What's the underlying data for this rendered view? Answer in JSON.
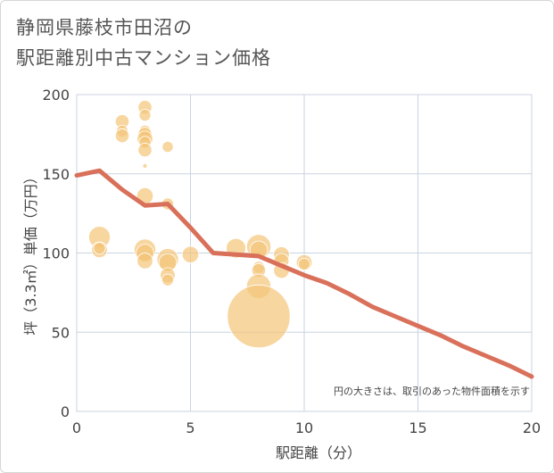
{
  "chart_data": {
    "type": "scatter",
    "title_lines": [
      "静岡県藤枝市田沼の",
      "駅距離別中古マンション価格"
    ],
    "xlabel": "駅距離（分）",
    "ylabel": "坪（3.3㎡）単価（万円）",
    "xlim": [
      0,
      20
    ],
    "ylim": [
      0,
      200
    ],
    "xticks": [
      0,
      5,
      10,
      15,
      20
    ],
    "yticks": [
      0,
      50,
      100,
      150,
      200
    ],
    "grid": true,
    "note": "円の大きさは、取引のあった物件面積を示す",
    "colors": {
      "bubble": "#f3c477",
      "line": "#d9705a",
      "grid": "#c9d3e0"
    },
    "bubbles": [
      {
        "x": 1,
        "y": 110,
        "size": 0.55
      },
      {
        "x": 1,
        "y": 102,
        "size": 0.4
      },
      {
        "x": 1,
        "y": 103,
        "size": 0.3
      },
      {
        "x": 2,
        "y": 183,
        "size": 0.35
      },
      {
        "x": 2,
        "y": 177,
        "size": 0.3
      },
      {
        "x": 2,
        "y": 174,
        "size": 0.35
      },
      {
        "x": 3,
        "y": 192,
        "size": 0.35
      },
      {
        "x": 3,
        "y": 187,
        "size": 0.3
      },
      {
        "x": 3,
        "y": 177,
        "size": 0.3
      },
      {
        "x": 3,
        "y": 175,
        "size": 0.35
      },
      {
        "x": 3,
        "y": 172,
        "size": 0.4
      },
      {
        "x": 3,
        "y": 170,
        "size": 0.3
      },
      {
        "x": 3,
        "y": 165,
        "size": 0.35
      },
      {
        "x": 3,
        "y": 155,
        "size": 0.1
      },
      {
        "x": 3,
        "y": 136,
        "size": 0.42
      },
      {
        "x": 3,
        "y": 102,
        "size": 0.55
      },
      {
        "x": 3,
        "y": 100,
        "size": 0.45
      },
      {
        "x": 3,
        "y": 95,
        "size": 0.4
      },
      {
        "x": 4,
        "y": 167,
        "size": 0.28
      },
      {
        "x": 4,
        "y": 131,
        "size": 0.3
      },
      {
        "x": 4,
        "y": 96,
        "size": 0.55
      },
      {
        "x": 4,
        "y": 94,
        "size": 0.45
      },
      {
        "x": 4,
        "y": 86,
        "size": 0.38
      },
      {
        "x": 4,
        "y": 83,
        "size": 0.3
      },
      {
        "x": 5,
        "y": 99,
        "size": 0.42
      },
      {
        "x": 7,
        "y": 103,
        "size": 0.5
      },
      {
        "x": 8,
        "y": 104,
        "size": 0.62
      },
      {
        "x": 8,
        "y": 102,
        "size": 0.45
      },
      {
        "x": 8,
        "y": 91,
        "size": 0.3
      },
      {
        "x": 8,
        "y": 89,
        "size": 0.35
      },
      {
        "x": 8,
        "y": 79,
        "size": 0.62
      },
      {
        "x": 8,
        "y": 60,
        "size": 1.6
      },
      {
        "x": 9,
        "y": 99,
        "size": 0.4
      },
      {
        "x": 9,
        "y": 95,
        "size": 0.38
      },
      {
        "x": 9,
        "y": 89,
        "size": 0.4
      },
      {
        "x": 10,
        "y": 94,
        "size": 0.4
      },
      {
        "x": 10,
        "y": 93,
        "size": 0.3
      }
    ],
    "trend": {
      "x": [
        0,
        1,
        2,
        3,
        4,
        5,
        6,
        7,
        8,
        9,
        10,
        11,
        12,
        13,
        14,
        15,
        16,
        17,
        18,
        19,
        20
      ],
      "y": [
        149,
        152,
        140,
        130,
        131,
        116,
        100,
        99,
        98,
        92,
        86,
        81,
        74,
        66,
        60,
        54,
        48,
        41,
        35,
        29,
        22
      ]
    }
  }
}
